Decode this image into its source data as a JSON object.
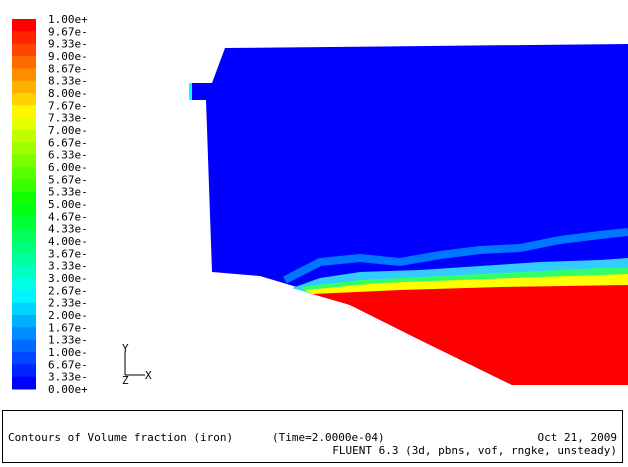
{
  "colorbar": {
    "labels": [
      "1.00e+",
      "9.67e-",
      "9.33e-",
      "9.00e-",
      "8.67e-",
      "8.33e-",
      "8.00e-",
      "7.67e-",
      "7.33e-",
      "7.00e-",
      "6.67e-",
      "6.33e-",
      "6.00e-",
      "5.67e-",
      "5.33e-",
      "5.00e-",
      "4.67e-",
      "4.33e-",
      "4.00e-",
      "3.67e-",
      "3.33e-",
      "3.00e-",
      "2.67e-",
      "2.33e-",
      "2.00e-",
      "1.67e-",
      "1.33e-",
      "1.00e-",
      "6.67e-",
      "3.33e-",
      "0.00e+"
    ]
  },
  "axes": {
    "y": "Y",
    "z": "Z",
    "x": "X"
  },
  "footer": {
    "title": "Contours of Volume fraction (iron)",
    "time": "(Time=2.0000e-04)",
    "date": "Oct 21, 2009",
    "solver": "FLUENT 6.3 (3d, pbns, vof, rngke, unsteady)"
  }
}
